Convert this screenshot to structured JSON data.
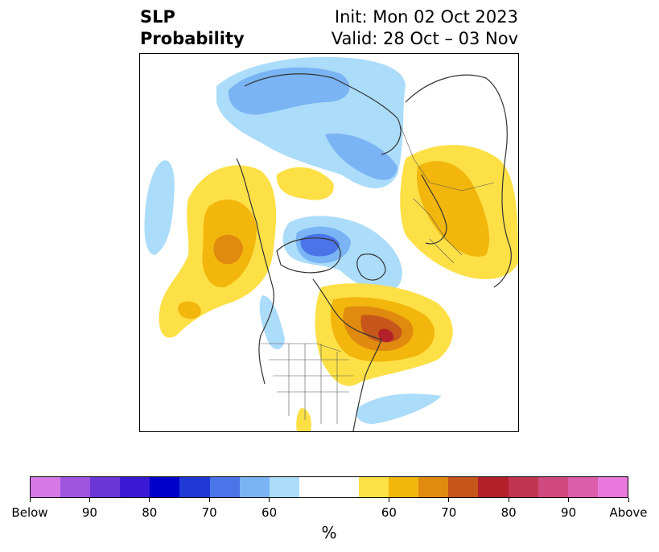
{
  "title": {
    "left_line1": "SLP",
    "left_line2": "Probability",
    "right_line1": "Init: Mon 02 Oct 2023",
    "right_line2": "Valid: 28 Oct – 03 Nov"
  },
  "colorbar": {
    "unit": "%",
    "colors": [
      "#d67ae8",
      "#9f55e0",
      "#6c35d8",
      "#3a1ad6",
      "#0000cc",
      "#2038d6",
      "#4a74e8",
      "#7ab4f4",
      "#abdcfa",
      "#ffffff",
      "#ffffff",
      "#fde046",
      "#f3b60c",
      "#e08a10",
      "#c6561a",
      "#b4202a",
      "#c03450",
      "#d04a80",
      "#dc5ea8",
      "#e878dc"
    ],
    "tick_labels": [
      "Below",
      "90",
      "80",
      "70",
      "60",
      "60",
      "70",
      "80",
      "90",
      "Above"
    ]
  },
  "colors": {
    "below_light": "#abdcfa",
    "below_mid": "#7ab4f4",
    "below_dark": "#4a74e8",
    "above_light": "#fde046",
    "above_mid": "#f3b60c",
    "above_dark": "#e08a10",
    "above_darker": "#c6561a",
    "above_darkest": "#b4202a",
    "coastline": "#333333"
  }
}
